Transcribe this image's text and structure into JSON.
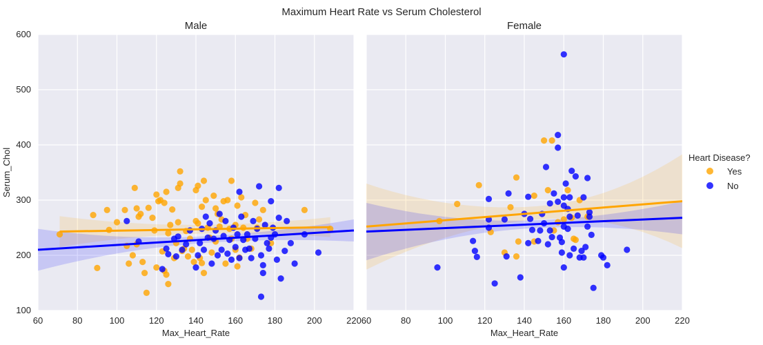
{
  "figure": {
    "title": "Maximum Heart Rate vs Serum Cholesterol",
    "background": "#EAEAF2",
    "grid_color": "#ffffff"
  },
  "legend": {
    "title": "Heart Disease?",
    "entries": [
      {
        "label": "Yes",
        "color": "#FFA500"
      },
      {
        "label": "No",
        "color": "#0000FF"
      }
    ]
  },
  "chart_data": [
    {
      "type": "scatter",
      "panel_title": "Male",
      "xlabel": "Max_Heart_Rate",
      "ylabel": "Serum_Chol",
      "xlim": [
        60,
        220
      ],
      "ylim": [
        100,
        600
      ],
      "xticks": [
        60,
        80,
        100,
        120,
        140,
        160,
        180,
        200,
        220
      ],
      "yticks": [
        100,
        200,
        300,
        400,
        500,
        600
      ],
      "grid": true,
      "series": [
        {
          "name": "Yes",
          "color": "#FFA500",
          "points": [
            [
              71,
              238
            ],
            [
              88,
              273
            ],
            [
              90,
              177
            ],
            [
              95,
              282
            ],
            [
              96,
              246
            ],
            [
              100,
              260
            ],
            [
              104,
              282
            ],
            [
              105,
              217
            ],
            [
              106,
              185
            ],
            [
              108,
              200
            ],
            [
              109,
              322
            ],
            [
              110,
              220
            ],
            [
              110,
              285
            ],
            [
              111,
              270
            ],
            [
              112,
              275
            ],
            [
              113,
              188
            ],
            [
              114,
              168
            ],
            [
              115,
              132
            ],
            [
              116,
              286
            ],
            [
              118,
              268
            ],
            [
              119,
              245
            ],
            [
              120,
              178
            ],
            [
              120,
              310
            ],
            [
              121,
              298
            ],
            [
              122,
              300
            ],
            [
              123,
              207
            ],
            [
              124,
              172
            ],
            [
              124,
              295
            ],
            [
              125,
              165
            ],
            [
              125,
              315
            ],
            [
              126,
              148
            ],
            [
              126,
              240
            ],
            [
              127,
              255
            ],
            [
              128,
              283
            ],
            [
              129,
              195
            ],
            [
              130,
              222
            ],
            [
              131,
              260
            ],
            [
              131,
              322
            ],
            [
              132,
              352
            ],
            [
              132,
              330
            ],
            [
              133,
              208
            ],
            [
              134,
              212
            ],
            [
              135,
              244
            ],
            [
              136,
              198
            ],
            [
              137,
              230
            ],
            [
              138,
              210
            ],
            [
              139,
              188
            ],
            [
              140,
              262
            ],
            [
              140,
              318
            ],
            [
              141,
              326
            ],
            [
              141,
              258
            ],
            [
              142,
              195
            ],
            [
              143,
              186
            ],
            [
              143,
              288
            ],
            [
              144,
              168
            ],
            [
              144,
              335
            ],
            [
              145,
              300
            ],
            [
              146,
              250
            ],
            [
              147,
              232
            ],
            [
              148,
              205
            ],
            [
              149,
              308
            ],
            [
              150,
              225
            ],
            [
              150,
              285
            ],
            [
              151,
              275
            ],
            [
              152,
              252
            ],
            [
              153,
              265
            ],
            [
              154,
              298
            ],
            [
              155,
              185
            ],
            [
              156,
              300
            ],
            [
              157,
              248
            ],
            [
              158,
              335
            ],
            [
              158,
              230
            ],
            [
              160,
              255
            ],
            [
              160,
              210
            ],
            [
              161,
              290
            ],
            [
              161,
              180
            ],
            [
              162,
              196
            ],
            [
              163,
              305
            ],
            [
              164,
              250
            ],
            [
              165,
              273
            ],
            [
              166,
              230
            ],
            [
              168,
              212
            ],
            [
              170,
              295
            ],
            [
              171,
              250
            ],
            [
              172,
              265
            ],
            [
              174,
              282
            ],
            [
              178,
              222
            ],
            [
              195,
              282
            ],
            [
              208,
              248
            ]
          ]
        },
        {
          "name": "No",
          "color": "#0000FF",
          "points": [
            [
              105,
              262
            ],
            [
              111,
              225
            ],
            [
              123,
              175
            ],
            [
              125,
              212
            ],
            [
              126,
              202
            ],
            [
              129,
              230
            ],
            [
              130,
              198
            ],
            [
              131,
              234
            ],
            [
              133,
              210
            ],
            [
              135,
              220
            ],
            [
              137,
              245
            ],
            [
              140,
              178
            ],
            [
              141,
              200
            ],
            [
              142,
              222
            ],
            [
              143,
              248
            ],
            [
              144,
              210
            ],
            [
              145,
              270
            ],
            [
              146,
              232
            ],
            [
              147,
              258
            ],
            [
              148,
              185
            ],
            [
              149,
              230
            ],
            [
              150,
              245
            ],
            [
              151,
              200
            ],
            [
              152,
              275
            ],
            [
              153,
              210
            ],
            [
              154,
              235
            ],
            [
              155,
              262
            ],
            [
              156,
              203
            ],
            [
              157,
              228
            ],
            [
              158,
              192
            ],
            [
              159,
              250
            ],
            [
              160,
              215
            ],
            [
              161,
              238
            ],
            [
              162,
              195
            ],
            [
              162,
              315
            ],
            [
              163,
              270
            ],
            [
              164,
              228
            ],
            [
              165,
              210
            ],
            [
              166,
              238
            ],
            [
              167,
              212
            ],
            [
              168,
              195
            ],
            [
              169,
              262
            ],
            [
              170,
              230
            ],
            [
              171,
              248
            ],
            [
              172,
              325
            ],
            [
              173,
              125
            ],
            [
              173,
              200
            ],
            [
              174,
              182
            ],
            [
              174,
              168
            ],
            [
              175,
              255
            ],
            [
              176,
              222
            ],
            [
              177,
              212
            ],
            [
              178,
              232
            ],
            [
              178,
              298
            ],
            [
              179,
              250
            ],
            [
              180,
              238
            ],
            [
              181,
              192
            ],
            [
              182,
              322
            ],
            [
              182,
              268
            ],
            [
              183,
              158
            ],
            [
              185,
              208
            ],
            [
              186,
              262
            ],
            [
              188,
              222
            ],
            [
              190,
              185
            ],
            [
              195,
              238
            ],
            [
              202,
              205
            ]
          ]
        }
      ],
      "regressions": [
        {
          "series": "Yes",
          "x_range": [
            71,
            208
          ],
          "y_at_ends": [
            243,
            251
          ],
          "ci_half_width_at_ends": [
            28,
            18
          ],
          "ci_min_half_width": 8
        },
        {
          "series": "No",
          "x_range": [
            60,
            220
          ],
          "y_at_ends": [
            210,
            245
          ],
          "ci_half_width_at_ends": [
            38,
            20
          ],
          "ci_min_half_width": 6
        }
      ]
    },
    {
      "type": "scatter",
      "panel_title": "Female",
      "xlabel": "Max_Heart_Rate",
      "ylabel": "",
      "xlim": [
        60,
        220
      ],
      "ylim": [
        100,
        600
      ],
      "xticks": [
        60,
        80,
        100,
        120,
        140,
        160,
        180,
        200,
        220
      ],
      "yticks": [
        100,
        200,
        300,
        400,
        500,
        600
      ],
      "grid": true,
      "series": [
        {
          "name": "Yes",
          "color": "#FFA500",
          "points": [
            [
              97,
              262
            ],
            [
              106,
              293
            ],
            [
              117,
              327
            ],
            [
              123,
              242
            ],
            [
              130,
              205
            ],
            [
              133,
              287
            ],
            [
              136,
              198
            ],
            [
              136,
              341
            ],
            [
              137,
              225
            ],
            [
              145,
              225
            ],
            [
              145,
              308
            ],
            [
              150,
              408
            ],
            [
              152,
              318
            ],
            [
              154,
              408
            ],
            [
              155,
              245
            ],
            [
              157,
              260
            ],
            [
              160,
              265
            ],
            [
              162,
              318
            ],
            [
              164,
              268
            ],
            [
              165,
              230
            ],
            [
              166,
              228
            ],
            [
              168,
              300
            ],
            [
              172,
              270
            ]
          ]
        },
        {
          "name": "No",
          "color": "#0000FF",
          "points": [
            [
              96,
              178
            ],
            [
              114,
              226
            ],
            [
              115,
              208
            ],
            [
              116,
              197
            ],
            [
              122,
              302
            ],
            [
              122,
              265
            ],
            [
              122,
              250
            ],
            [
              125,
              149
            ],
            [
              130,
              265
            ],
            [
              131,
              198
            ],
            [
              132,
              312
            ],
            [
              138,
              160
            ],
            [
              140,
              275
            ],
            [
              142,
              306
            ],
            [
              142,
              222
            ],
            [
              143,
              266
            ],
            [
              144,
              246
            ],
            [
              147,
              226
            ],
            [
              148,
              245
            ],
            [
              149,
              275
            ],
            [
              150,
              258
            ],
            [
              151,
              360
            ],
            [
              152,
              220
            ],
            [
              153,
              245
            ],
            [
              153,
              294
            ],
            [
              154,
              233
            ],
            [
              155,
              312
            ],
            [
              157,
              418
            ],
            [
              157,
              395
            ],
            [
              157,
              297
            ],
            [
              158,
              232
            ],
            [
              159,
              205
            ],
            [
              159,
              224
            ],
            [
              160,
              564
            ],
            [
              160,
              305
            ],
            [
              160,
              290
            ],
            [
              160,
              252
            ],
            [
              160,
              178
            ],
            [
              161,
              330
            ],
            [
              162,
              284
            ],
            [
              162,
              248
            ],
            [
              163,
              305
            ],
            [
              163,
              200
            ],
            [
              163,
              270
            ],
            [
              164,
              353
            ],
            [
              165,
              212
            ],
            [
              166,
              343
            ],
            [
              167,
              272
            ],
            [
              168,
              196
            ],
            [
              169,
              208
            ],
            [
              170,
              196
            ],
            [
              170,
              305
            ],
            [
              171,
              215
            ],
            [
              172,
              340
            ],
            [
              172,
              252
            ],
            [
              173,
              278
            ],
            [
              173,
              270
            ],
            [
              174,
              237
            ],
            [
              175,
              141
            ],
            [
              179,
              200
            ],
            [
              180,
              196
            ],
            [
              182,
              182
            ],
            [
              192,
              210
            ]
          ]
        }
      ],
      "regressions": [
        {
          "series": "Yes",
          "x_range": [
            60,
            220
          ],
          "y_at_ends": [
            252,
            298
          ],
          "ci_half_width_at_ends": [
            78,
            85
          ],
          "ci_min_half_width": 12
        },
        {
          "series": "No",
          "x_range": [
            60,
            220
          ],
          "y_at_ends": [
            243,
            268
          ],
          "ci_half_width_at_ends": [
            52,
            30
          ],
          "ci_min_half_width": 7
        }
      ]
    }
  ]
}
